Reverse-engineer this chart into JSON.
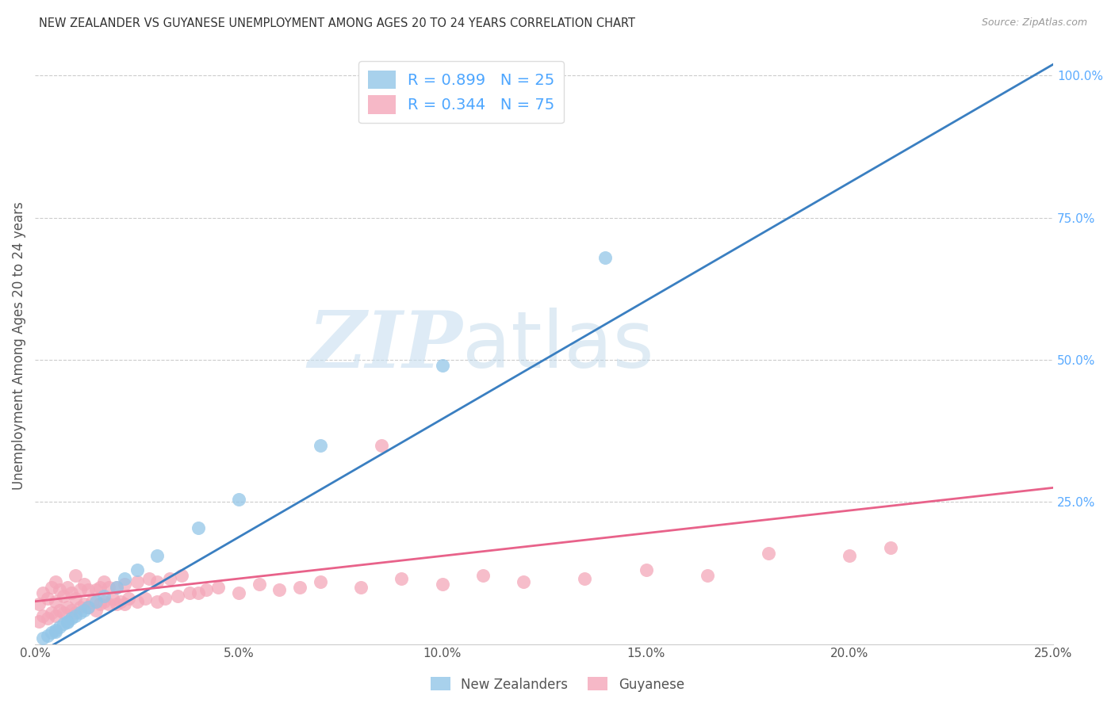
{
  "title": "NEW ZEALANDER VS GUYANESE UNEMPLOYMENT AMONG AGES 20 TO 24 YEARS CORRELATION CHART",
  "source": "Source: ZipAtlas.com",
  "ylabel": "Unemployment Among Ages 20 to 24 years",
  "xlim": [
    0.0,
    0.25
  ],
  "ylim": [
    0.0,
    1.05
  ],
  "xticks": [
    0.0,
    0.05,
    0.1,
    0.15,
    0.2,
    0.25
  ],
  "xtick_labels": [
    "0.0%",
    "5.0%",
    "10.0%",
    "15.0%",
    "20.0%",
    "25.0%"
  ],
  "yticks_right": [
    0.25,
    0.5,
    0.75,
    1.0
  ],
  "ytick_right_labels": [
    "25.0%",
    "50.0%",
    "75.0%",
    "100.0%"
  ],
  "nz_color": "#93c6e8",
  "guyanese_color": "#f4a7b9",
  "nz_line_color": "#3a7fc1",
  "guyanese_line_color": "#e8628a",
  "nz_R": 0.899,
  "nz_N": 25,
  "guyanese_R": 0.344,
  "guyanese_N": 75,
  "legend_label_nz": "New Zealanders",
  "legend_label_guyanese": "Guyanese",
  "watermark_zip": "ZIP",
  "watermark_atlas": "atlas",
  "background_color": "#ffffff",
  "nz_x": [
    0.002,
    0.003,
    0.004,
    0.005,
    0.005,
    0.006,
    0.007,
    0.008,
    0.008,
    0.009,
    0.01,
    0.011,
    0.012,
    0.013,
    0.015,
    0.017,
    0.02,
    0.022,
    0.025,
    0.03,
    0.04,
    0.05,
    0.07,
    0.1,
    0.14
  ],
  "nz_y": [
    0.01,
    0.015,
    0.02,
    0.022,
    0.025,
    0.03,
    0.035,
    0.038,
    0.04,
    0.045,
    0.05,
    0.055,
    0.06,
    0.065,
    0.075,
    0.085,
    0.1,
    0.115,
    0.13,
    0.155,
    0.205,
    0.255,
    0.35,
    0.49,
    0.68
  ],
  "guyanese_x": [
    0.001,
    0.001,
    0.002,
    0.002,
    0.003,
    0.003,
    0.004,
    0.004,
    0.005,
    0.005,
    0.005,
    0.006,
    0.006,
    0.007,
    0.007,
    0.008,
    0.008,
    0.009,
    0.009,
    0.01,
    0.01,
    0.01,
    0.011,
    0.011,
    0.012,
    0.012,
    0.013,
    0.013,
    0.014,
    0.015,
    0.015,
    0.016,
    0.016,
    0.017,
    0.017,
    0.018,
    0.018,
    0.019,
    0.02,
    0.02,
    0.021,
    0.022,
    0.022,
    0.023,
    0.025,
    0.025,
    0.027,
    0.028,
    0.03,
    0.03,
    0.032,
    0.033,
    0.035,
    0.036,
    0.038,
    0.04,
    0.042,
    0.045,
    0.05,
    0.055,
    0.06,
    0.065,
    0.07,
    0.08,
    0.085,
    0.09,
    0.1,
    0.11,
    0.12,
    0.135,
    0.15,
    0.165,
    0.18,
    0.2,
    0.21
  ],
  "guyanese_y": [
    0.04,
    0.07,
    0.05,
    0.09,
    0.045,
    0.08,
    0.055,
    0.1,
    0.05,
    0.075,
    0.11,
    0.06,
    0.095,
    0.055,
    0.085,
    0.065,
    0.1,
    0.06,
    0.09,
    0.055,
    0.08,
    0.12,
    0.065,
    0.095,
    0.07,
    0.105,
    0.065,
    0.095,
    0.075,
    0.06,
    0.095,
    0.07,
    0.1,
    0.075,
    0.11,
    0.07,
    0.1,
    0.08,
    0.07,
    0.1,
    0.075,
    0.07,
    0.105,
    0.08,
    0.075,
    0.11,
    0.08,
    0.115,
    0.075,
    0.11,
    0.08,
    0.115,
    0.085,
    0.12,
    0.09,
    0.09,
    0.095,
    0.1,
    0.09,
    0.105,
    0.095,
    0.1,
    0.11,
    0.1,
    0.35,
    0.115,
    0.105,
    0.12,
    0.11,
    0.115,
    0.13,
    0.12,
    0.16,
    0.155,
    0.17
  ],
  "nz_line_x": [
    0.0,
    0.25
  ],
  "nz_line_y": [
    -0.02,
    1.02
  ],
  "guyanese_line_x": [
    0.0,
    0.25
  ],
  "guyanese_line_y": [
    0.075,
    0.275
  ]
}
